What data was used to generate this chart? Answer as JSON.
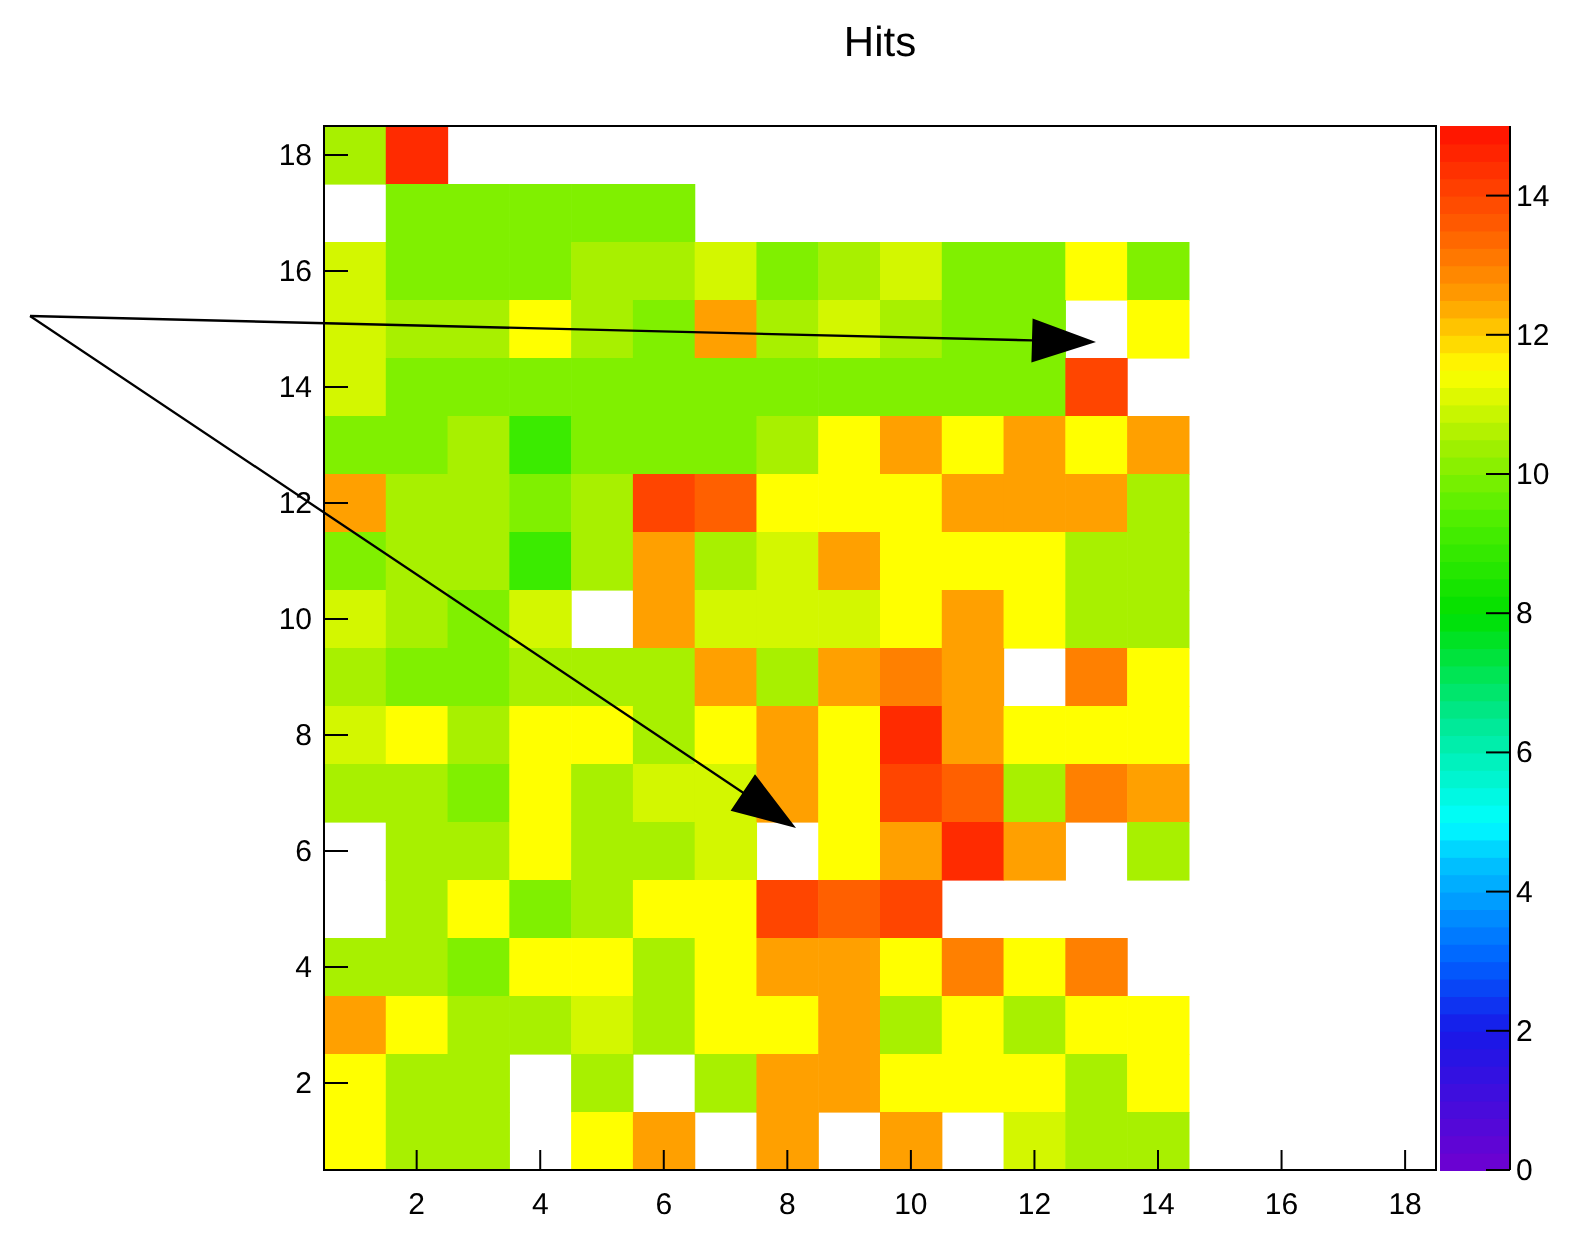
{
  "chart_data": {
    "type": "heatmap",
    "title": "Hits",
    "categories": [
      null,
      "2",
      null,
      "4",
      null,
      "6",
      null,
      "8",
      null,
      "10",
      null,
      "12",
      null,
      "14",
      null,
      "16",
      null,
      "18"
    ],
    "y_categories": [
      "18",
      null,
      "16",
      null,
      "14",
      null,
      "12",
      null,
      "10",
      null,
      "8",
      null,
      "6",
      null,
      "4",
      null,
      "2",
      null
    ],
    "cells": [
      [
        10.5,
        14.5,
        null,
        null,
        null,
        null,
        null,
        null,
        null,
        null,
        null,
        null,
        null,
        null,
        null,
        null,
        null,
        null
      ],
      [
        null,
        10,
        10,
        10,
        10,
        10,
        null,
        null,
        null,
        null,
        null,
        null,
        null,
        null,
        null,
        null,
        null,
        null
      ],
      [
        11,
        10,
        10,
        10,
        10.5,
        10.5,
        11,
        10,
        10.5,
        11,
        10,
        10,
        11.5,
        10,
        null,
        null,
        null,
        null
      ],
      [
        11,
        10.5,
        10.5,
        11.5,
        10.5,
        10,
        12.5,
        10.5,
        11,
        10.5,
        10,
        10,
        null,
        11.5,
        null,
        null,
        null,
        null
      ],
      [
        11,
        10,
        10,
        10,
        10,
        10,
        10,
        10,
        10,
        10,
        10,
        10,
        14,
        null,
        null,
        null,
        null,
        null
      ],
      [
        10,
        10,
        10.5,
        9,
        10,
        10,
        10,
        10.5,
        11.5,
        12.5,
        11.5,
        12.5,
        11.5,
        12.5,
        null,
        null,
        null,
        null
      ],
      [
        12.5,
        10.5,
        10.5,
        10,
        10.5,
        14,
        13.5,
        11.5,
        11.5,
        11.5,
        12.5,
        12.5,
        12.5,
        10.5,
        null,
        null,
        null,
        null
      ],
      [
        10,
        10.5,
        10.5,
        9,
        10.5,
        12.5,
        10.5,
        11,
        12.5,
        11.5,
        11.5,
        11.5,
        10.5,
        10.5,
        null,
        null,
        null,
        null
      ],
      [
        11,
        10.5,
        10,
        11,
        null,
        12.5,
        11,
        11,
        11,
        11.5,
        12.5,
        11.5,
        10.5,
        10.5,
        null,
        null,
        null,
        null
      ],
      [
        10.5,
        10,
        10,
        10.5,
        10.5,
        10.5,
        12.5,
        10.5,
        12.5,
        13,
        12.5,
        null,
        13,
        11.5,
        null,
        null,
        null,
        null
      ],
      [
        11,
        11.5,
        10.5,
        11.5,
        11.5,
        10.5,
        11.5,
        12.5,
        11.5,
        14.5,
        12.5,
        11.5,
        11.5,
        11.5,
        null,
        null,
        null,
        null
      ],
      [
        10.5,
        10.5,
        10,
        11.5,
        10.5,
        11,
        11,
        12.5,
        11.5,
        14,
        13.5,
        10.5,
        13,
        12.5,
        null,
        null,
        null,
        null
      ],
      [
        null,
        10.5,
        10.5,
        11.5,
        10.5,
        10.5,
        11,
        null,
        11.5,
        12.5,
        14.5,
        12.5,
        null,
        10.5,
        null,
        null,
        null,
        null
      ],
      [
        null,
        10.5,
        11.5,
        10,
        10.5,
        11.5,
        11.5,
        14,
        13.5,
        14,
        null,
        null,
        null,
        null,
        null,
        null,
        null,
        null
      ],
      [
        10.5,
        10.5,
        10,
        11.5,
        11.5,
        10.5,
        11.5,
        12.5,
        12.5,
        11.5,
        13,
        11.5,
        13,
        null,
        null,
        null,
        null,
        null
      ],
      [
        12.5,
        11.5,
        10.5,
        10.5,
        11,
        10.5,
        11.5,
        11.5,
        12.5,
        10.5,
        11.5,
        10.5,
        11.5,
        11.5,
        null,
        null,
        null,
        null
      ],
      [
        11.5,
        10.5,
        10.5,
        null,
        10.5,
        null,
        10.5,
        12.5,
        12.5,
        11.5,
        11.5,
        11.5,
        10.5,
        11.5,
        null,
        null,
        null,
        null
      ],
      [
        11.5,
        10.5,
        10.5,
        null,
        11.5,
        12.5,
        null,
        12.5,
        null,
        12.5,
        null,
        11,
        10.5,
        10.5,
        null,
        null,
        null,
        null
      ]
    ],
    "clim": [
      0,
      15
    ],
    "cticks": [
      0,
      2,
      4,
      6,
      8,
      10,
      12,
      14
    ]
  }
}
